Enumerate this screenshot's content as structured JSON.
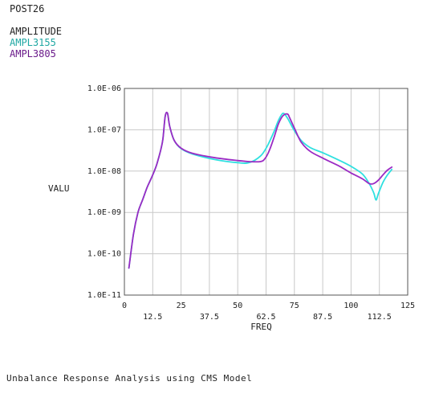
{
  "header": {
    "program": "POST26",
    "plot_title": "AMPLITUDE"
  },
  "footer": "Unbalance Response Analysis using CMS Model",
  "colors": {
    "grid": "#c8c8c8",
    "axis": "#555555"
  },
  "chart_data": {
    "type": "line",
    "title": "AMPLITUDE",
    "xlabel": "FREQ",
    "ylabel": "VALU",
    "xlim": [
      0,
      125
    ],
    "ylim": [
      1e-11,
      1e-06
    ],
    "yscale": "log",
    "grid": true,
    "legend_placement": "top-left",
    "x_ticks_upper": [
      "0",
      "25",
      "50",
      "75",
      "100",
      "125"
    ],
    "x_ticks_lower": [
      "12.5",
      "37.5",
      "62.5",
      "87.5",
      "112.5"
    ],
    "y_ticks": [
      "1.0E-06",
      "1.0E-07",
      "1.0E-08",
      "1.0E-09",
      "1.0E-10",
      "1.0E-11"
    ],
    "series": [
      {
        "name": "AMPL3155",
        "color": "#2fe0e0",
        "x": [
          2,
          4,
          6,
          8,
          10,
          12,
          14,
          15,
          16,
          17,
          18,
          19,
          20,
          22,
          25,
          30,
          40,
          50,
          55,
          60,
          63,
          66,
          68,
          70,
          72,
          73,
          75,
          78,
          82,
          88,
          95,
          100,
          105,
          108,
          110,
          111,
          112,
          114,
          116,
          118
        ],
        "y": [
          4.5e-11,
          3e-10,
          1e-09,
          2e-09,
          4e-09,
          7e-09,
          1.3e-08,
          2e-08,
          3.2e-08,
          6e-08,
          2.1e-07,
          2.5e-07,
          1.2e-07,
          5.5e-08,
          3.5e-08,
          2.6e-08,
          1.9e-08,
          1.6e-08,
          1.6e-08,
          2.3e-08,
          4e-08,
          9e-08,
          1.7e-07,
          2.5e-07,
          1.9e-07,
          1.5e-07,
          9.5e-08,
          5.5e-08,
          3.7e-08,
          2.7e-08,
          1.8e-08,
          1.3e-08,
          8.5e-09,
          5e-09,
          3e-09,
          2e-09,
          2.8e-09,
          5.2e-09,
          8e-09,
          1.1e-08
        ]
      },
      {
        "name": "AMPL3805",
        "color": "#9b2bc4",
        "x": [
          2,
          4,
          6,
          8,
          10,
          12,
          14,
          15,
          16,
          17,
          18,
          19,
          20,
          22,
          25,
          30,
          40,
          50,
          55,
          60,
          62,
          64,
          66,
          68,
          70,
          72,
          73,
          75,
          78,
          82,
          88,
          95,
          100,
          105,
          108,
          110,
          112,
          114,
          116,
          118
        ],
        "y": [
          4.5e-11,
          3e-10,
          1e-09,
          2e-09,
          4e-09,
          7e-09,
          1.3e-08,
          2e-08,
          3.2e-08,
          6e-08,
          2.1e-07,
          2.5e-07,
          1.2e-07,
          5.5e-08,
          3.6e-08,
          2.7e-08,
          2.1e-08,
          1.8e-08,
          1.7e-08,
          1.7e-08,
          2e-08,
          3.2e-08,
          6.5e-08,
          1.4e-07,
          2.2e-07,
          2.4e-07,
          1.9e-07,
          1.1e-07,
          5e-08,
          3e-08,
          2e-08,
          1.3e-08,
          9e-09,
          6.5e-09,
          5e-09,
          5e-09,
          6e-09,
          8e-09,
          1.05e-08,
          1.25e-08
        ]
      }
    ]
  }
}
